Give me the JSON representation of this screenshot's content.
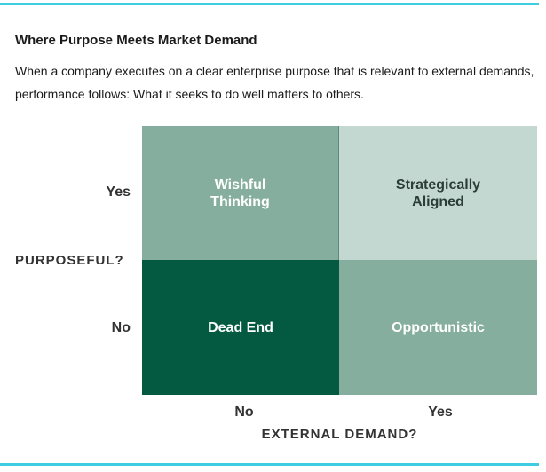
{
  "header": {
    "title": "Where Purpose Meets Market Demand",
    "description": "When a company executes on a clear enterprise purpose that is relevant to external demands, performance follows: What it seeks to do well matters to others."
  },
  "matrix": {
    "y_axis": {
      "title": "PURPOSEFUL?",
      "labels": [
        "Yes",
        "No"
      ]
    },
    "x_axis": {
      "title": "EXTERNAL DEMAND?",
      "labels": [
        "No",
        "Yes"
      ]
    },
    "quadrants": {
      "top_left": "Wishful\nThinking",
      "top_right": "Strategically\nAligned",
      "bottom_left": "Dead End",
      "bottom_right": "Opportunistic"
    },
    "colors": {
      "accent_rule": "#3fcbe0",
      "top_left": "#85ae9f",
      "top_right": "#c3d8d1",
      "bottom_left": "#035a40",
      "bottom_right": "#85ae9f"
    }
  }
}
